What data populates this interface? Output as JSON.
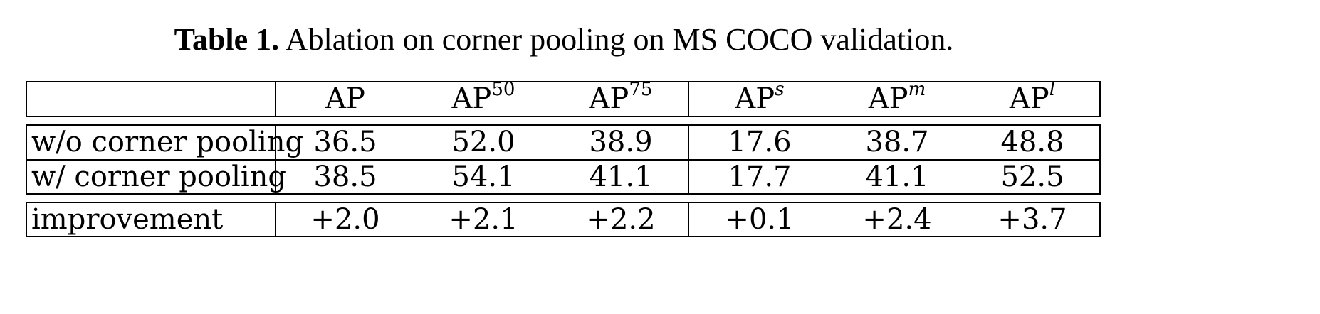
{
  "caption": {
    "label": "Table 1.",
    "text": "Ablation on corner pooling on MS COCO validation."
  },
  "table": {
    "columns": [
      {
        "base": "AP",
        "sup": "",
        "italic": false
      },
      {
        "base": "AP",
        "sup": "50",
        "italic": false
      },
      {
        "base": "AP",
        "sup": "75",
        "italic": false
      },
      {
        "base": "AP",
        "sup": "s",
        "italic": true
      },
      {
        "base": "AP",
        "sup": "m",
        "italic": true
      },
      {
        "base": "AP",
        "sup": "l",
        "italic": true
      }
    ],
    "rows": [
      {
        "label": "w/o corner pooling",
        "values": [
          "36.5",
          "52.0",
          "38.9",
          "17.6",
          "38.7",
          "48.8"
        ]
      },
      {
        "label": "w/ corner pooling",
        "values": [
          "38.5",
          "54.1",
          "41.1",
          "17.7",
          "41.1",
          "52.5"
        ]
      }
    ],
    "improvement": {
      "label": "improvement",
      "values": [
        "+2.0",
        "+2.1",
        "+2.2",
        "+0.1",
        "+2.4",
        "+3.7"
      ]
    }
  }
}
